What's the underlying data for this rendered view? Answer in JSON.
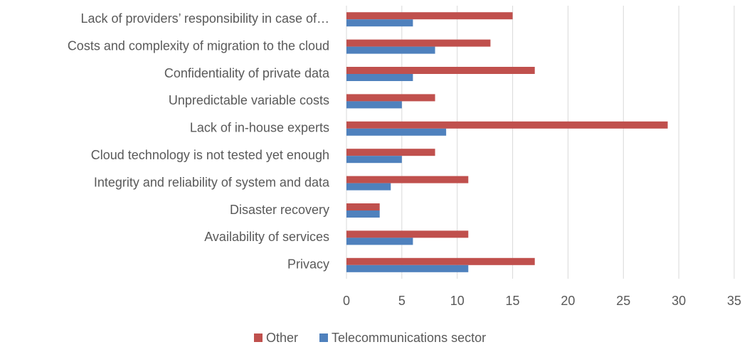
{
  "chart_data": {
    "type": "hbar",
    "categories": [
      "Lack of providers’ responsibility in case of…",
      "Costs and complexity of migration to the cloud",
      "Confidentiality of private data",
      "Unpredictable variable costs",
      "Lack of in-house experts",
      "Cloud technology is not tested yet enough",
      "Integrity and reliability of system and data",
      "Disaster recovery",
      "Availability of services",
      "Privacy"
    ],
    "series": [
      {
        "name": "Other",
        "color": "#c0504d",
        "values": [
          15,
          13,
          17,
          8,
          29,
          8,
          11,
          3,
          11,
          17
        ]
      },
      {
        "name": "Telecommunications sector",
        "color": "#4f81bd",
        "values": [
          6,
          8,
          6,
          5,
          9,
          5,
          4,
          3,
          6,
          11
        ]
      }
    ],
    "xlim": [
      0,
      35
    ],
    "xticks": [
      0,
      5,
      10,
      15,
      20,
      25,
      30,
      35
    ],
    "grid": true,
    "legend": "bottom"
  }
}
